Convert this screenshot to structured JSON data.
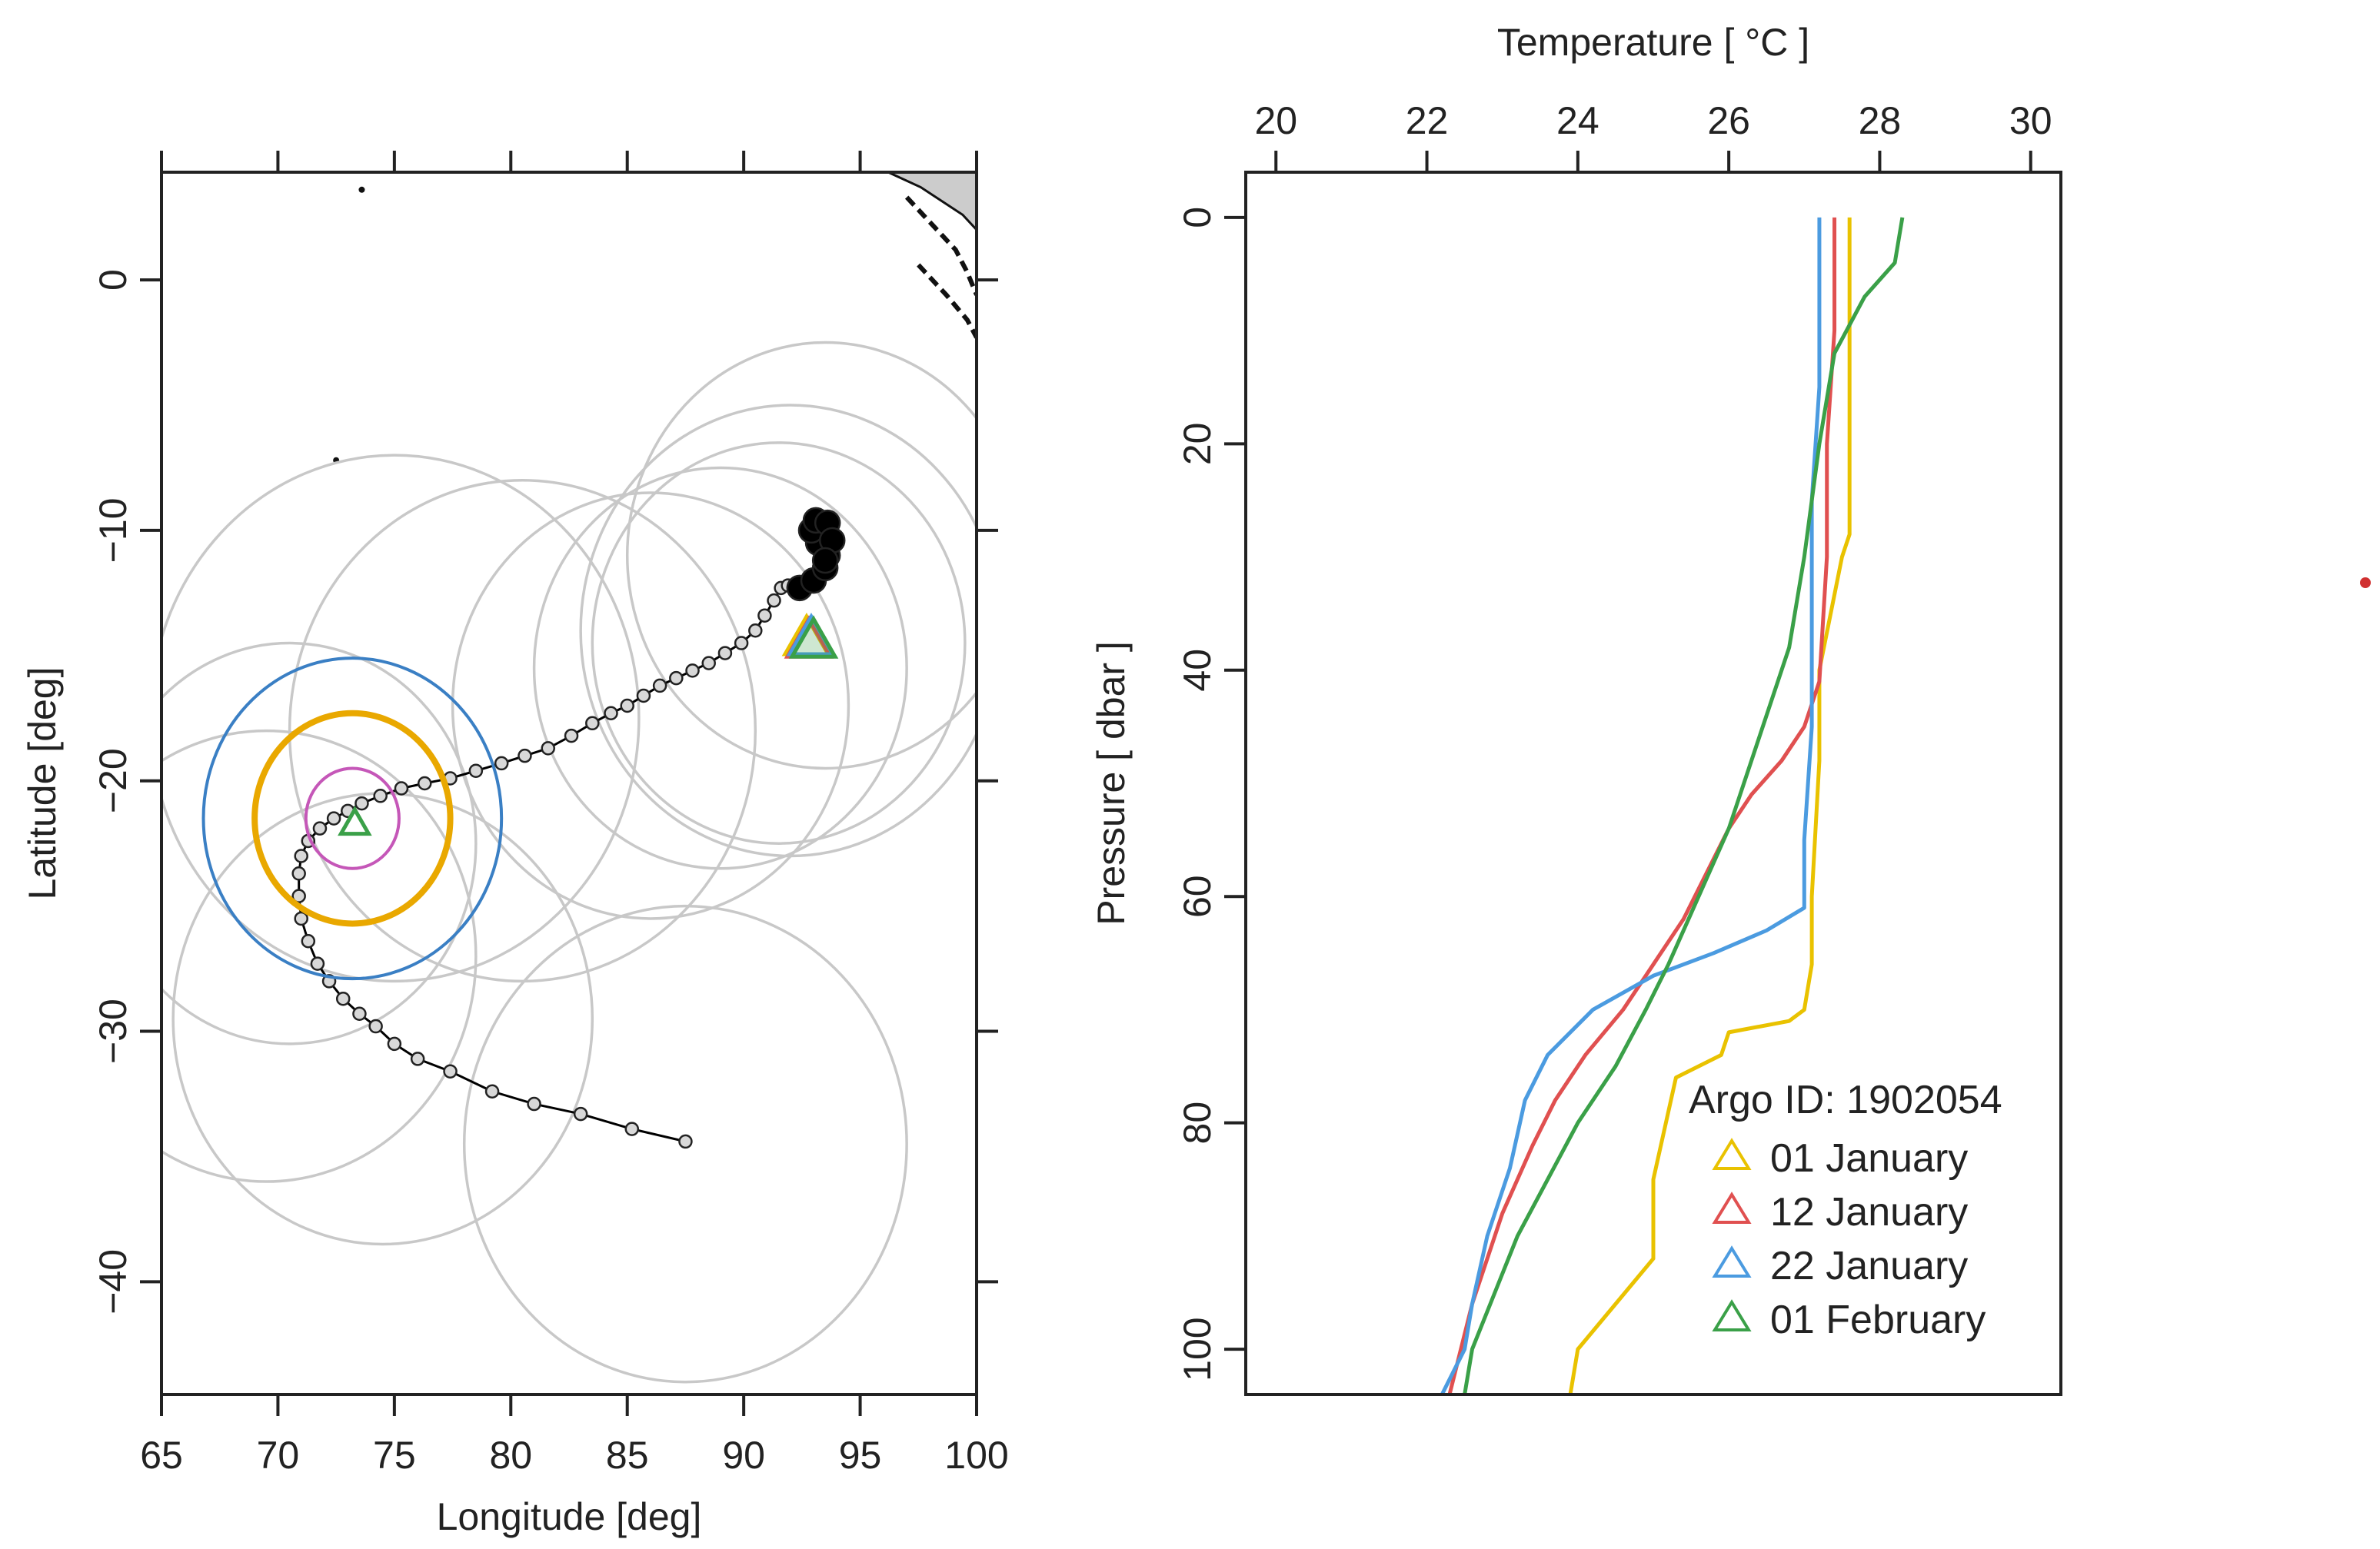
{
  "chart_data": [
    {
      "type": "scatter",
      "xlabel": "Longitude [deg]",
      "ylabel": "Latitude [deg]",
      "xlim": [
        65,
        100
      ],
      "ylim": [
        -44.5,
        4.3
      ],
      "xticks": [
        65,
        70,
        75,
        80,
        85,
        90,
        95,
        100
      ],
      "yticks": [
        0,
        -10,
        -20,
        -30,
        -40
      ],
      "grid": false,
      "series": [
        {
          "kind": "trajectory",
          "x": [
            87.5,
            85.2,
            83.0,
            81.0,
            79.2,
            77.4,
            76.0,
            75.0,
            74.2,
            73.5,
            72.8,
            72.2,
            71.7,
            71.3,
            71.0,
            70.9,
            70.9,
            71.0,
            71.3,
            71.8,
            72.4,
            73.0,
            73.6,
            74.4,
            75.3,
            76.3,
            77.4,
            78.5,
            79.6,
            80.6,
            81.6,
            82.6,
            83.5,
            84.3,
            85.0,
            85.7,
            86.4,
            87.1,
            87.8,
            88.5,
            89.2,
            89.9,
            90.5,
            90.9,
            91.3,
            91.6,
            91.9,
            92.4,
            93.0,
            93.5,
            93.6,
            93.2,
            92.9,
            93.1,
            93.6,
            93.8,
            93.5
          ],
          "y": [
            -34.4,
            -33.9,
            -33.3,
            -32.9,
            -32.4,
            -31.6,
            -31.1,
            -30.5,
            -29.8,
            -29.3,
            -28.7,
            -28.0,
            -27.3,
            -26.4,
            -25.5,
            -24.6,
            -23.7,
            -23.0,
            -22.4,
            -21.9,
            -21.5,
            -21.2,
            -20.9,
            -20.6,
            -20.3,
            -20.1,
            -19.9,
            -19.6,
            -19.3,
            -19.0,
            -18.7,
            -18.2,
            -17.7,
            -17.3,
            -17.0,
            -16.6,
            -16.2,
            -15.9,
            -15.6,
            -15.3,
            -14.9,
            -14.5,
            -14.0,
            -13.4,
            -12.8,
            -12.3,
            -12.2,
            -12.3,
            -12.0,
            -11.5,
            -11.0,
            -10.5,
            -10.0,
            -9.6,
            -9.7,
            -10.4,
            -11.2
          ],
          "color": "#000000"
        }
      ],
      "search_circles": [
        {
          "x": 75.0,
          "y": -17.5,
          "r": 10.5
        },
        {
          "x": 80.5,
          "y": -18.0,
          "r": 10.0
        },
        {
          "x": 86.0,
          "y": -17.0,
          "r": 8.5
        },
        {
          "x": 89.0,
          "y": -15.5,
          "r": 8.0
        },
        {
          "x": 91.5,
          "y": -14.5,
          "r": 8.0
        },
        {
          "x": 93.5,
          "y": -11.0,
          "r": 8.5
        },
        {
          "x": 92.0,
          "y": -14.0,
          "r": 9.0
        },
        {
          "x": 69.5,
          "y": -27.0,
          "r": 9.0
        },
        {
          "x": 74.5,
          "y": -29.5,
          "r": 9.0
        },
        {
          "x": 87.5,
          "y": -34.5,
          "r": 9.5
        },
        {
          "x": 70.5,
          "y": -22.5,
          "r": 8.0
        }
      ],
      "highlight_circles": [
        {
          "x": 73.2,
          "y": -21.5,
          "r": 6.4,
          "color": "#3a7fc4"
        },
        {
          "x": 73.2,
          "y": -21.5,
          "r": 4.2,
          "color": "#e9a800"
        },
        {
          "x": 73.2,
          "y": -21.5,
          "r": 2.0,
          "color": "#c557b8"
        }
      ],
      "profile_locations": [
        {
          "x": 92.7,
          "y": -14.3,
          "color": "#e9c200"
        },
        {
          "x": 92.8,
          "y": -14.4,
          "color": "#e05050"
        },
        {
          "x": 92.9,
          "y": -14.3,
          "color": "#4b9be0"
        },
        {
          "x": 93.0,
          "y": -14.4,
          "color": "#3aa048"
        },
        {
          "x": 73.3,
          "y": -21.7,
          "color": "#3aa048"
        }
      ],
      "land": [
        {
          "kind": "polygon",
          "x": [
            96.2,
            97.6,
            99.4,
            100,
            100,
            98.8
          ],
          "y": [
            4.3,
            3.7,
            2.6,
            2.0,
            4.3,
            4.3
          ],
          "fill": "#cccccc"
        },
        {
          "kind": "polyline",
          "x": [
            97.0,
            97.8,
            98.5,
            99.1,
            99.6,
            100
          ],
          "y": [
            3.3,
            2.5,
            1.8,
            1.2,
            0.3,
            -0.6
          ]
        },
        {
          "kind": "polyline",
          "x": [
            97.5,
            98.7,
            99.6,
            100
          ],
          "y": [
            0.6,
            -0.6,
            -1.6,
            -2.3
          ]
        }
      ],
      "dots": [
        {
          "x": 72.5,
          "y": -7.2
        },
        {
          "x": 73.6,
          "y": 3.6
        }
      ]
    },
    {
      "type": "line",
      "xlabel": "Temperature [ °C ]",
      "ylabel": "Pressure [ dbar ]",
      "xlim": [
        19.6,
        30.4
      ],
      "ylim": [
        104,
        -4
      ],
      "xticks": [
        20,
        22,
        24,
        26,
        28,
        30
      ],
      "yticks": [
        0,
        20,
        40,
        60,
        80,
        100
      ],
      "grid": false,
      "legend": {
        "title": "Argo ID: 1902054",
        "position": "bottom-right",
        "entries": [
          "01 January",
          "12 January",
          "22 January",
          "01 February"
        ]
      },
      "series": [
        {
          "name": "01 January",
          "color": "#e9c200",
          "temp": [
            27.6,
            27.6,
            27.6,
            27.6,
            27.5,
            27.2,
            27.2,
            27.1,
            27.1,
            27.0,
            26.8,
            26.0,
            25.9,
            25.3,
            25.2,
            25.0,
            25.0,
            24.5,
            24.0,
            23.9
          ],
          "pres": [
            0,
            10,
            20,
            28,
            30,
            40,
            48,
            60,
            66,
            70,
            71,
            72,
            74,
            76,
            79,
            85,
            92,
            96,
            100,
            104
          ]
        },
        {
          "name": "12 January",
          "color": "#e05050",
          "temp": [
            27.4,
            27.4,
            27.3,
            27.3,
            27.2,
            27.0,
            26.7,
            26.3,
            26.0,
            25.7,
            25.4,
            25.0,
            24.6,
            24.1,
            23.7,
            23.4,
            23.0,
            22.6,
            22.3
          ],
          "pres": [
            0,
            10,
            20,
            30,
            41,
            45,
            48,
            51,
            54,
            58,
            62,
            66,
            70,
            74,
            78,
            82,
            88,
            96,
            104
          ]
        },
        {
          "name": "22 January",
          "color": "#4b9be0",
          "temp": [
            27.2,
            27.2,
            27.1,
            27.1,
            27.1,
            27.0,
            27.0,
            26.5,
            25.8,
            25.0,
            24.2,
            23.6,
            23.3,
            23.1,
            22.8,
            22.6,
            22.5,
            22.2
          ],
          "pres": [
            0,
            15,
            25,
            35,
            45,
            55,
            61,
            63,
            65,
            67,
            70,
            74,
            78,
            84,
            90,
            96,
            100,
            104
          ]
        },
        {
          "name": "01 February",
          "color": "#3aa048",
          "temp": [
            28.3,
            28.2,
            27.8,
            27.4,
            27.2,
            27.0,
            26.8,
            26.6,
            26.3,
            26.0,
            25.6,
            25.2,
            24.9,
            24.5,
            24.0,
            23.6,
            23.2,
            22.9,
            22.6,
            22.5
          ],
          "pres": [
            0,
            4,
            7,
            12,
            20,
            30,
            38,
            42,
            48,
            54,
            60,
            66,
            70,
            75,
            80,
            85,
            90,
            95,
            100,
            104
          ]
        }
      ]
    }
  ]
}
